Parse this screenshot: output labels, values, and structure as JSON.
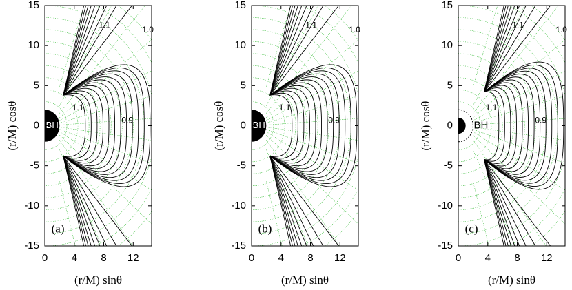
{
  "chart_data": [
    {
      "type": "contour",
      "panel_label": "(a)",
      "xlabel": "(r/M) sinθ",
      "ylabel": "(r/M) cosθ",
      "xlim": [
        0,
        14.5
      ],
      "ylim": [
        -15,
        15
      ],
      "xticks": [
        0,
        4,
        8,
        12
      ],
      "yticks": [
        -15,
        -10,
        -5,
        0,
        5,
        10,
        15
      ],
      "annotations": [
        "1.1",
        "1.0",
        "1.1",
        "0.9"
      ],
      "bh_label": "BH"
    },
    {
      "type": "contour",
      "panel_label": "(b)",
      "xlabel": "(r/M) sinθ",
      "ylabel": "(r/M) cosθ",
      "xlim": [
        0,
        14.5
      ],
      "ylim": [
        -15,
        15
      ],
      "xticks": [
        0,
        4,
        8,
        12
      ],
      "yticks": [
        -15,
        -10,
        -5,
        0,
        5,
        10,
        15
      ],
      "annotations": [
        "1.1",
        "1.0",
        "1.1",
        "0.9"
      ],
      "bh_label": "BH"
    },
    {
      "type": "contour",
      "panel_label": "(c)",
      "xlabel": "(r/M) sinθ",
      "ylabel": "(r/M) cosθ",
      "xlim": [
        0,
        14.5
      ],
      "ylim": [
        -15,
        15
      ],
      "xticks": [
        0,
        4,
        8,
        12
      ],
      "yticks": [
        -15,
        -10,
        -5,
        0,
        5,
        10,
        15
      ],
      "annotations": [
        "1.1",
        "1.0",
        "1.1",
        "0.9"
      ],
      "bh_label": "BH"
    }
  ]
}
